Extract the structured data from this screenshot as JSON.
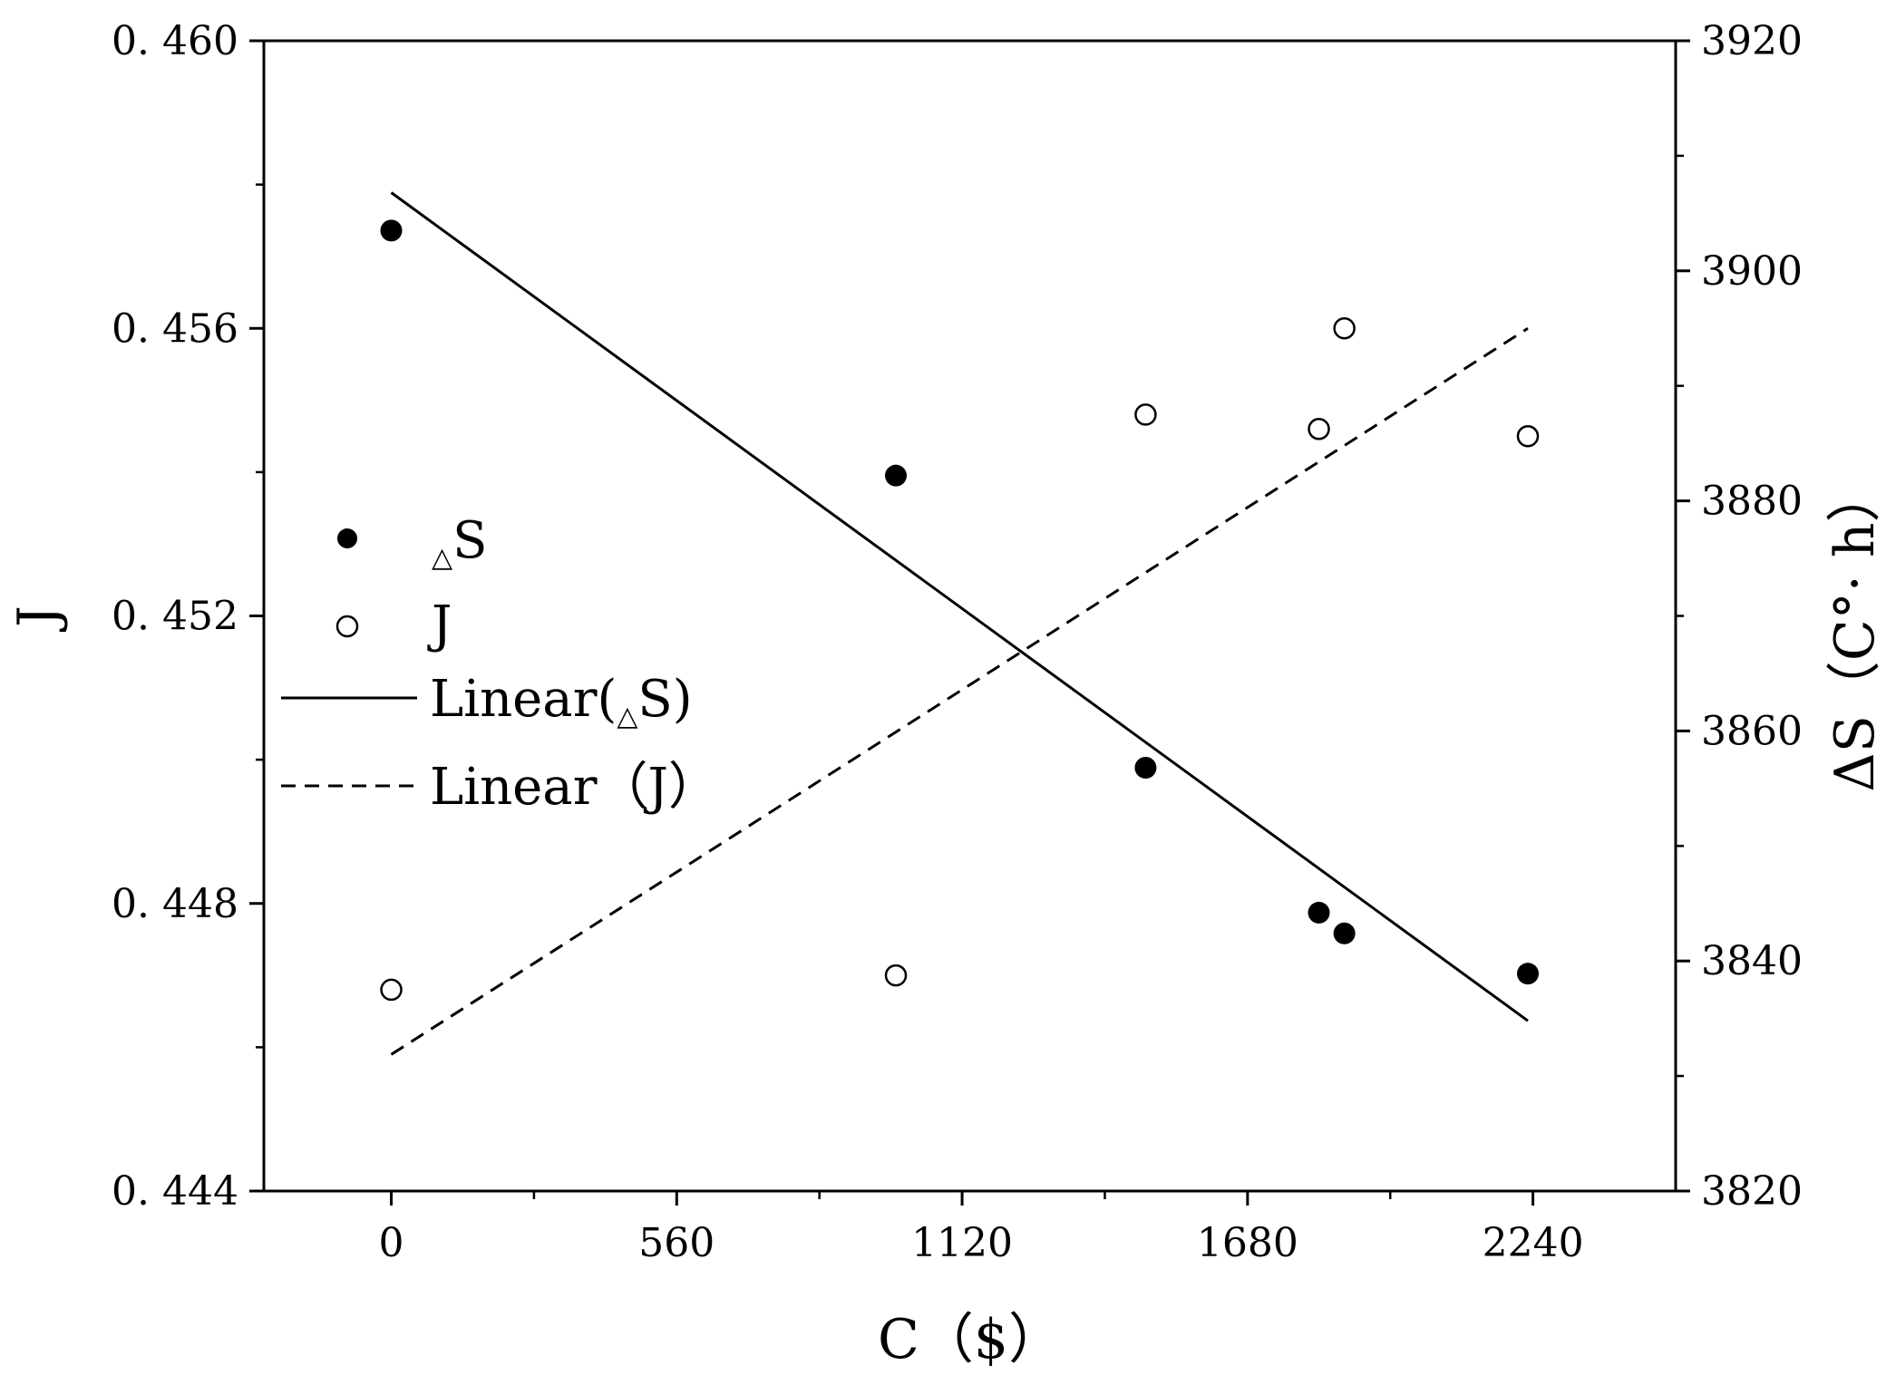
{
  "chart_data": {
    "type": "scatter",
    "xlabel": "C（$）",
    "ylabel_left": "J",
    "ylabel_right": "ΔS（C°· h）",
    "x_ticks": [
      0,
      560,
      1120,
      1680,
      2240
    ],
    "x_tick_labels": [
      "0",
      "560",
      "1120",
      "1680",
      "2240"
    ],
    "xlim": [
      -250,
      2520
    ],
    "y_left_ticks": [
      0.444,
      0.448,
      0.452,
      0.456,
      0.46
    ],
    "y_left_tick_labels": [
      "0. 444",
      "0. 448",
      "0. 452",
      "0. 456",
      "0. 460"
    ],
    "y_left_lim": [
      0.444,
      0.46
    ],
    "y_right_ticks": [
      3820,
      3840,
      3860,
      3880,
      3900,
      3920
    ],
    "y_right_tick_labels": [
      "3820",
      "3840",
      "3860",
      "3880",
      "3900",
      "3920"
    ],
    "y_right_lim": [
      3820,
      3920
    ],
    "grid": false,
    "legend_position": "center-left",
    "series": [
      {
        "name": "S",
        "name_prefix": "△",
        "axis": "right",
        "marker": "filled-circle",
        "x": [
          0,
          990,
          1480,
          1820,
          1870,
          2230
        ],
        "y": [
          3903.5,
          3882.2,
          3856.8,
          3844.2,
          3842.4,
          3838.9
        ]
      },
      {
        "name": "J",
        "axis": "left",
        "marker": "open-circle",
        "x": [
          0,
          990,
          1480,
          1820,
          1870,
          2230
        ],
        "y": [
          0.4468,
          0.447,
          0.4548,
          0.4546,
          0.456,
          0.4545
        ]
      }
    ],
    "fit_lines": [
      {
        "name": "Linear(△S)",
        "axis": "right",
        "style": "solid",
        "x": [
          0,
          2230
        ],
        "y": [
          3906.8,
          3834.8
        ]
      },
      {
        "name": "Linear（J）",
        "axis": "left",
        "style": "dashed",
        "x": [
          0,
          2230
        ],
        "y": [
          0.4459,
          0.456
        ]
      }
    ],
    "legend": {
      "entry1_prefix": "△",
      "entry1_text": "S",
      "entry2_text": "J",
      "entry3_prefix": "Linear(",
      "entry3_sub": "△",
      "entry3_suffix": "S)",
      "entry4_text": "Linear（J）"
    }
  }
}
